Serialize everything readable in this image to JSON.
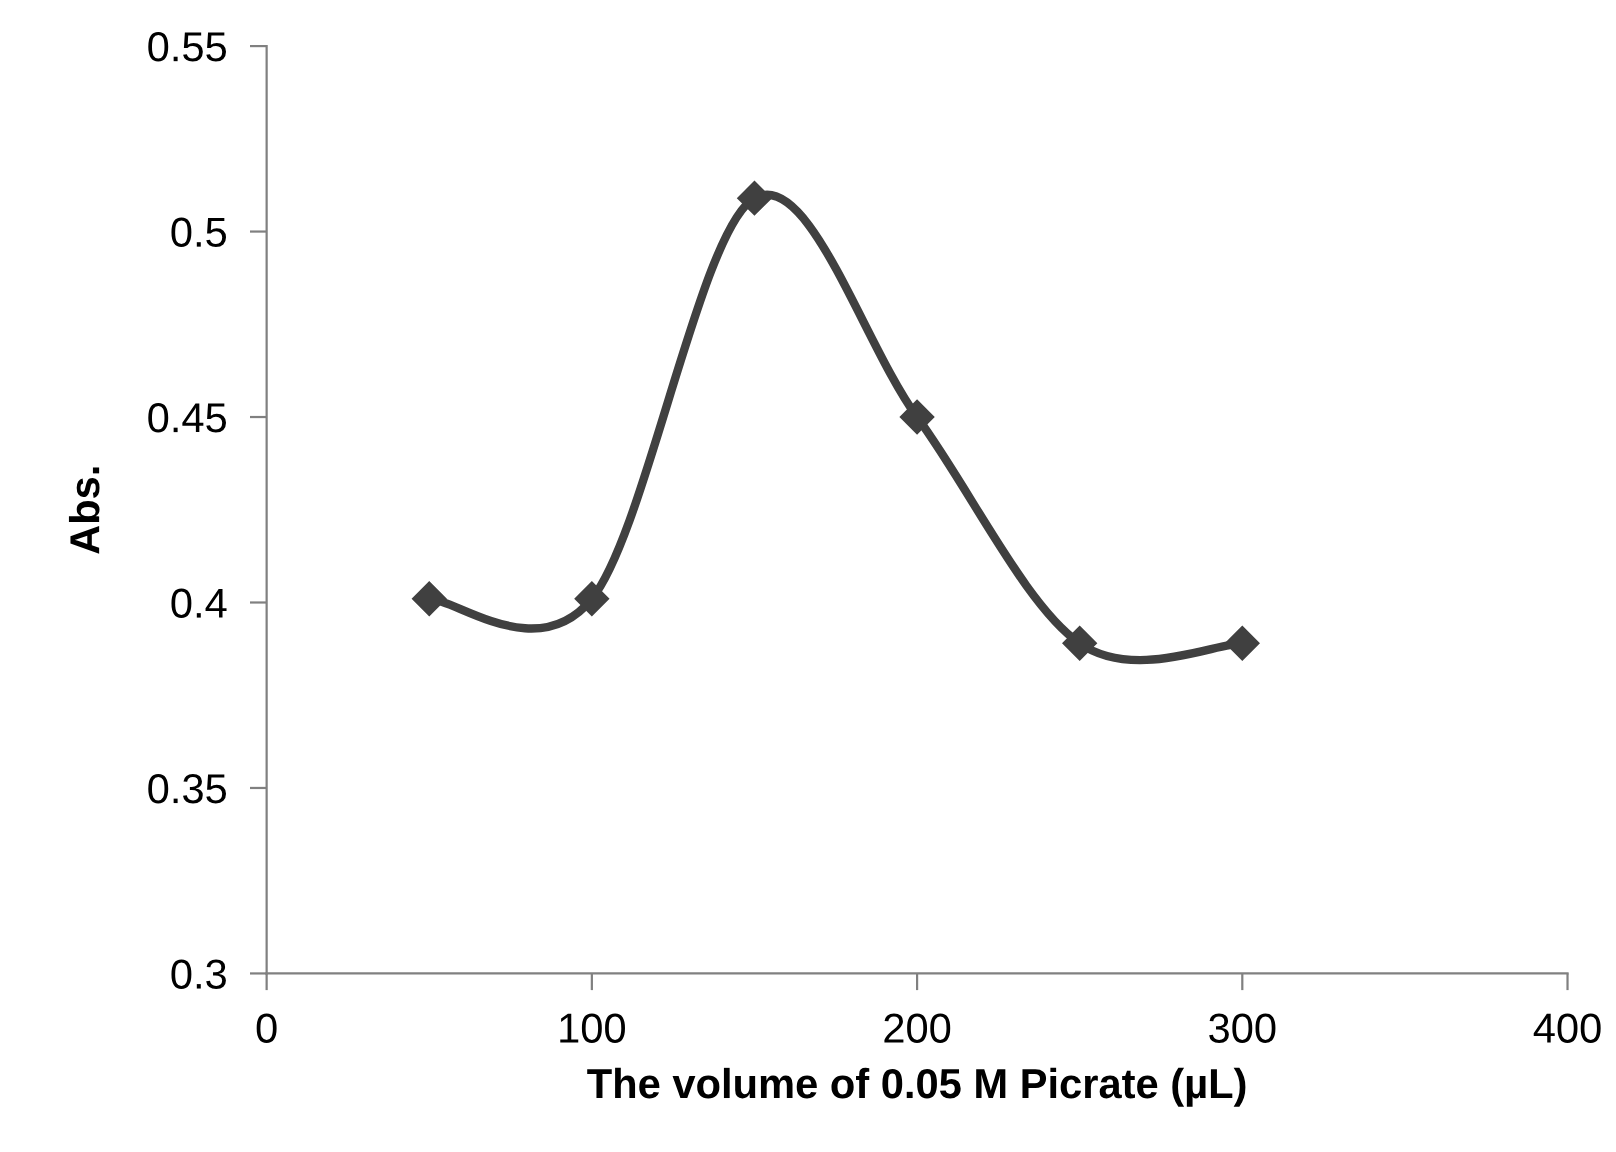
{
  "chart_data": {
    "type": "line",
    "xlabel": "The volume of 0.05 M Picrate (µL)",
    "ylabel": "Abs.",
    "x": [
      50,
      100,
      150,
      200,
      250,
      300
    ],
    "series": [
      {
        "color": "#404040",
        "values": [
          0.401,
          0.401,
          0.509,
          0.45,
          0.389,
          0.389
        ]
      }
    ],
    "xlim": [
      0,
      400
    ],
    "xticks": [
      0,
      100,
      200,
      300,
      400
    ],
    "ylim": [
      0.3,
      0.55
    ],
    "yticks": [
      0.3,
      0.35,
      0.4,
      0.45,
      0.5,
      0.55
    ],
    "marker": "diamond",
    "line_style": "solid",
    "grid": false,
    "legend": false
  }
}
